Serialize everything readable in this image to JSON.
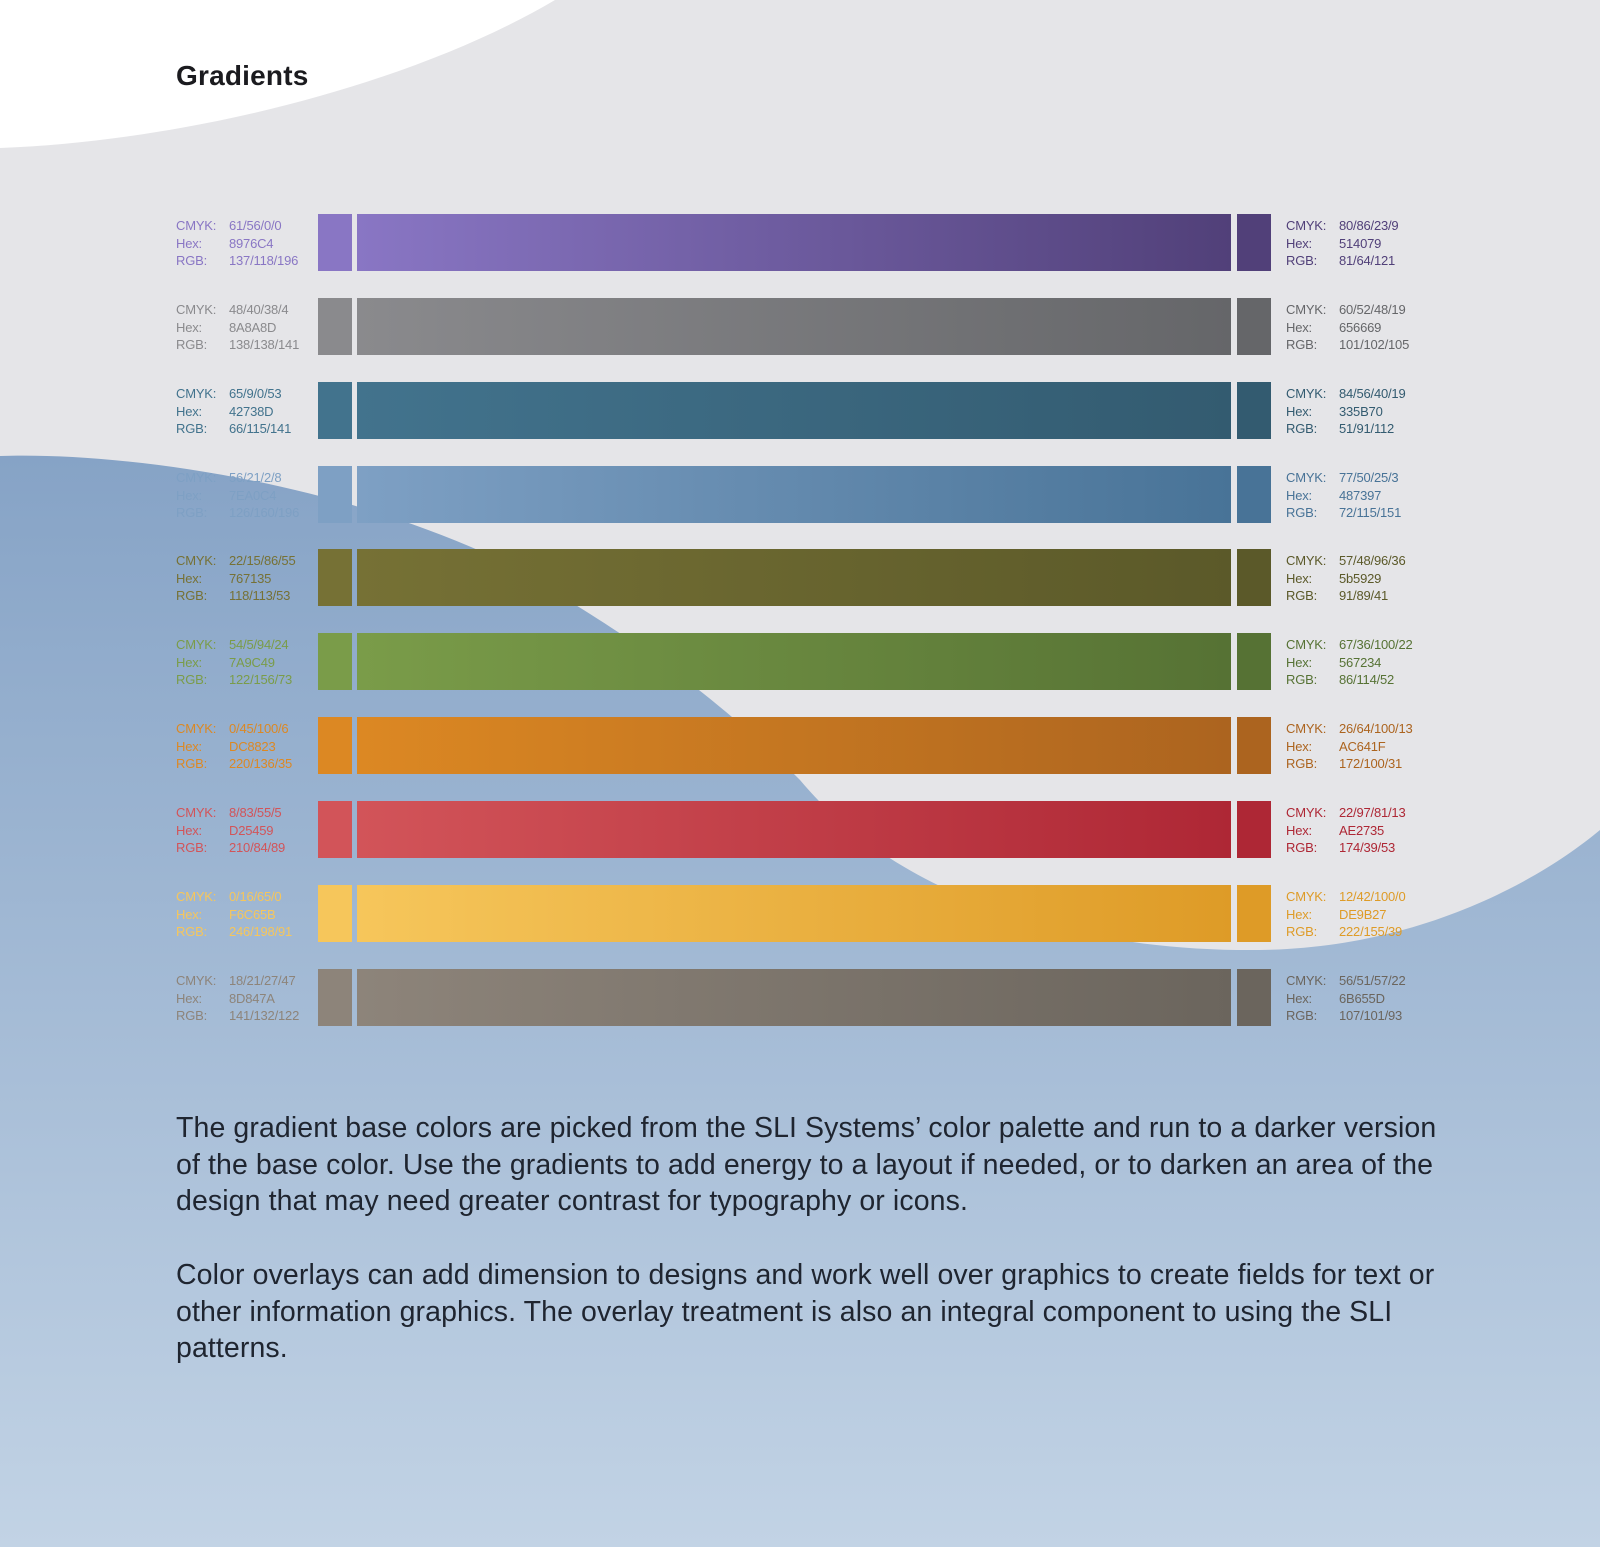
{
  "page": {
    "title": "Gradients",
    "paragraphs": [
      "The gradient base colors are picked from the SLI Systems’ color palette and run to a darker version of the base color. Use the gradients to add energy to a layout if needed, or to darken an area of the design that may need greater contrast for typography or icons.",
      "Color overlays can add dimension to designs and work well over graphics to create fields for text or other information graphics. The overlay treatment is also an integral component to using the SLI patterns."
    ]
  },
  "labels": {
    "cmyk": "CMYK:",
    "hex": "Hex:",
    "rgb": "RGB:"
  },
  "gradients": [
    {
      "start": {
        "cmyk": "61/56/0/0",
        "hex": "8976C4",
        "rgb": "137/118/196"
      },
      "end": {
        "cmyk": "80/86/23/9",
        "hex": "514079",
        "rgb": "81/64/121"
      }
    },
    {
      "start": {
        "cmyk": "48/40/38/4",
        "hex": "8A8A8D",
        "rgb": "138/138/141"
      },
      "end": {
        "cmyk": "60/52/48/19",
        "hex": "656669",
        "rgb": "101/102/105"
      }
    },
    {
      "start": {
        "cmyk": "65/9/0/53",
        "hex": "42738D",
        "rgb": "66/115/141"
      },
      "end": {
        "cmyk": "84/56/40/19",
        "hex": "335B70",
        "rgb": "51/91/112"
      }
    },
    {
      "start": {
        "cmyk": "56/21/2/8",
        "hex": "7EA0C4",
        "rgb": "126/160/196"
      },
      "end": {
        "cmyk": "77/50/25/3",
        "hex": "487397",
        "rgb": "72/115/151"
      }
    },
    {
      "start": {
        "cmyk": "22/15/86/55",
        "hex": "767135",
        "rgb": "118/113/53"
      },
      "end": {
        "cmyk": "57/48/96/36",
        "hex": "5b5929",
        "rgb": "91/89/41"
      }
    },
    {
      "start": {
        "cmyk": "54/5/94/24",
        "hex": "7A9C49",
        "rgb": "122/156/73"
      },
      "end": {
        "cmyk": "67/36/100/22",
        "hex": "567234",
        "rgb": "86/114/52"
      }
    },
    {
      "start": {
        "cmyk": "0/45/100/6",
        "hex": "DC8823",
        "rgb": "220/136/35"
      },
      "end": {
        "cmyk": "26/64/100/13",
        "hex": "AC641F",
        "rgb": "172/100/31"
      }
    },
    {
      "start": {
        "cmyk": "8/83/55/5",
        "hex": "D25459",
        "rgb": "210/84/89"
      },
      "end": {
        "cmyk": "22/97/81/13",
        "hex": "AE2735",
        "rgb": "174/39/53"
      }
    },
    {
      "start": {
        "cmyk": "0/16/65/0",
        "hex": "F6C65B",
        "rgb": "246/198/91"
      },
      "end": {
        "cmyk": "12/42/100/0",
        "hex": "DE9B27",
        "rgb": "222/155/39"
      }
    },
    {
      "start": {
        "cmyk": "18/21/27/47",
        "hex": "8D847A",
        "rgb": "141/132/122"
      },
      "end": {
        "cmyk": "56/51/57/22",
        "hex": "6B655D",
        "rgb": "107/101/93"
      }
    }
  ]
}
